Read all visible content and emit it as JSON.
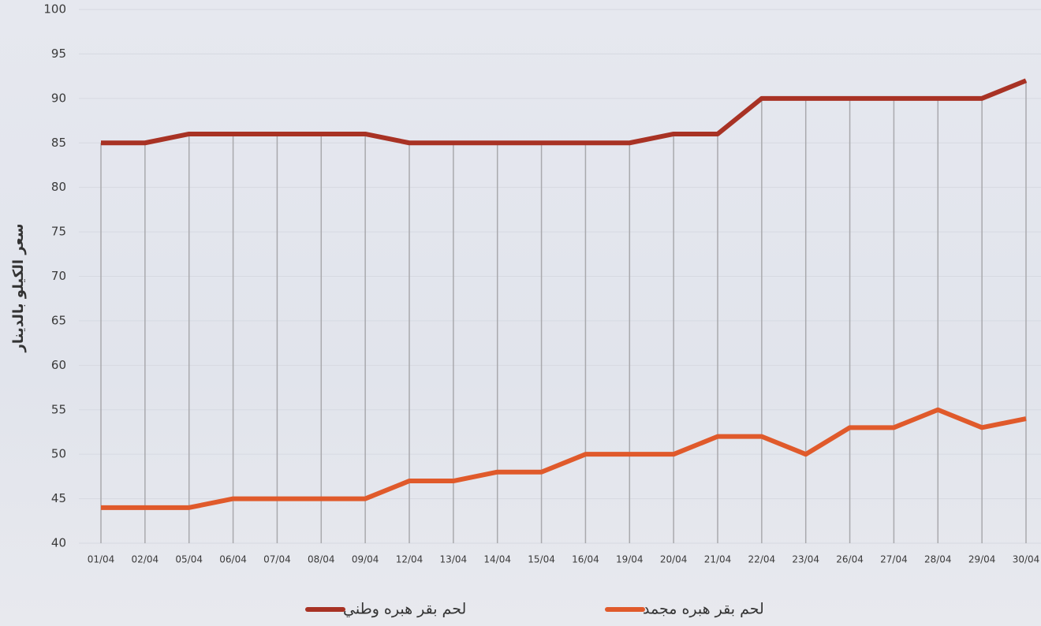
{
  "chart_data": {
    "type": "line",
    "y_label": "سعر الكيلو بالدينار",
    "categories": [
      "01/04",
      "02/04",
      "05/04",
      "06/04",
      "07/04",
      "08/04",
      "09/04",
      "12/04",
      "13/04",
      "14/04",
      "15/04",
      "16/04",
      "19/04",
      "20/04",
      "21/04",
      "22/04",
      "23/04",
      "26/04",
      "27/04",
      "28/04",
      "29/04",
      "30/04"
    ],
    "series": [
      {
        "name": "لحم بقر هبره وطني",
        "color": "#a83224",
        "values": [
          85,
          85,
          86,
          86,
          86,
          86,
          86,
          85,
          85,
          85,
          85,
          85,
          85,
          86,
          86,
          90,
          90,
          90,
          90,
          90,
          90,
          92
        ]
      },
      {
        "name": "لحم بقر هبره مجمد",
        "color": "#e05a2b",
        "values": [
          44,
          44,
          44,
          45,
          45,
          45,
          45,
          47,
          47,
          48,
          48,
          50,
          50,
          50,
          52,
          52,
          50,
          53,
          53,
          55,
          53,
          54
        ]
      }
    ],
    "ylim": [
      40,
      100
    ],
    "yticks": [
      40,
      45,
      50,
      55,
      60,
      65,
      70,
      75,
      80,
      85,
      90,
      95,
      100
    ],
    "grid": true,
    "drop_lines": true,
    "legend": "bottom"
  }
}
